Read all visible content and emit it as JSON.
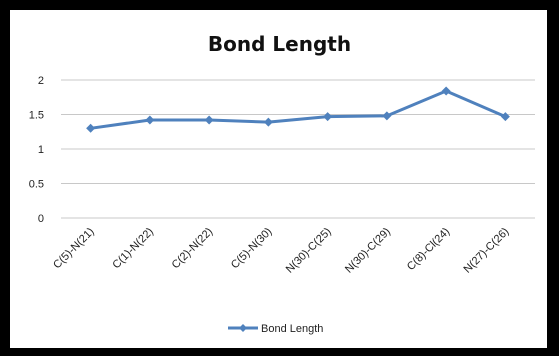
{
  "chart_data": {
    "type": "line",
    "title": "Bond Length",
    "categories": [
      "C(5)-N(21)",
      "C(1)-N(22)",
      "C(2)-N(22)",
      "C(5)-N(30)",
      "N(30)-C(25)",
      "N(30)-C(29)",
      "C(8)-Cl(24)",
      "N(27)-C(26)"
    ],
    "series": [
      {
        "name": "Bond Length",
        "values": [
          1.3,
          1.42,
          1.42,
          1.39,
          1.47,
          1.48,
          1.84,
          1.47
        ]
      }
    ],
    "ylim": [
      0,
      2
    ],
    "yticks": [
      "0",
      "0.5",
      "1",
      "1.5",
      "2"
    ],
    "grid": true,
    "legend_position": "bottom"
  },
  "colors": {
    "series": "#4F81BD",
    "grid": "#c8c8c8",
    "frame": "#000000"
  }
}
